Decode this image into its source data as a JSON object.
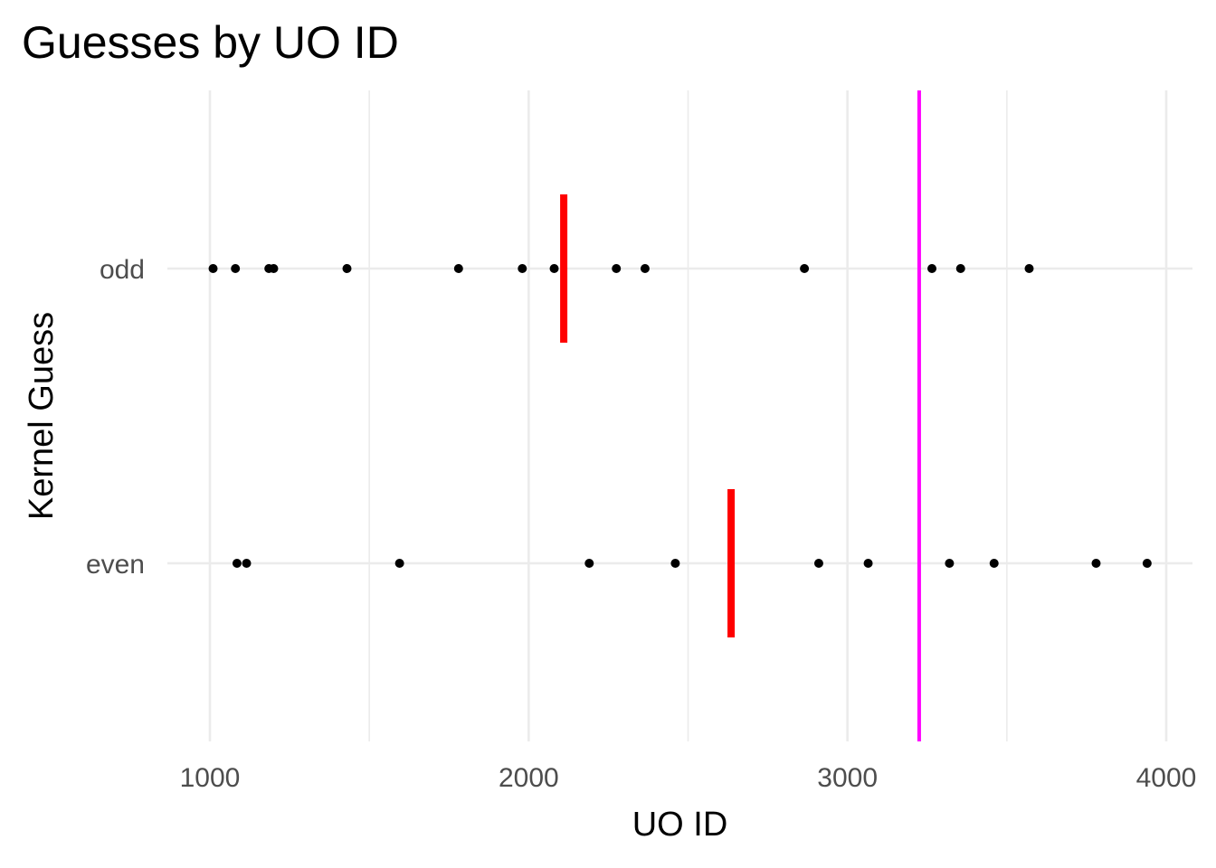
{
  "chart_data": {
    "type": "scatter",
    "title": "Guesses by UO ID",
    "xlabel": "UO ID",
    "ylabel": "Kernel Guess",
    "xlim": [
      870,
      4110
    ],
    "xticks": [
      1000,
      2000,
      3000,
      4000
    ],
    "xtick_labels": [
      "1000",
      "2000",
      "3000",
      "4000"
    ],
    "categories": [
      "even",
      "odd"
    ],
    "grid": true,
    "legend": "none",
    "series": [
      {
        "category": "odd",
        "x": [
          1010,
          1080,
          1185,
          1200,
          1430,
          1780,
          1980,
          2080,
          2275,
          2365,
          2865,
          3265,
          3355,
          3570
        ]
      },
      {
        "category": "even",
        "x": [
          1085,
          1115,
          1595,
          2190,
          2460,
          2910,
          3065,
          3320,
          3460,
          3780,
          3940
        ]
      }
    ],
    "group_means": [
      {
        "category": "odd",
        "x": 2110
      },
      {
        "category": "even",
        "x": 2635
      }
    ],
    "reference_line": {
      "x": 3225
    },
    "colors": {
      "points": "#000000",
      "group_mean": "#ff0000",
      "reference_line": "#ff00ff",
      "grid": "#ebebeb",
      "tick_text": "#4d4d4d"
    }
  }
}
